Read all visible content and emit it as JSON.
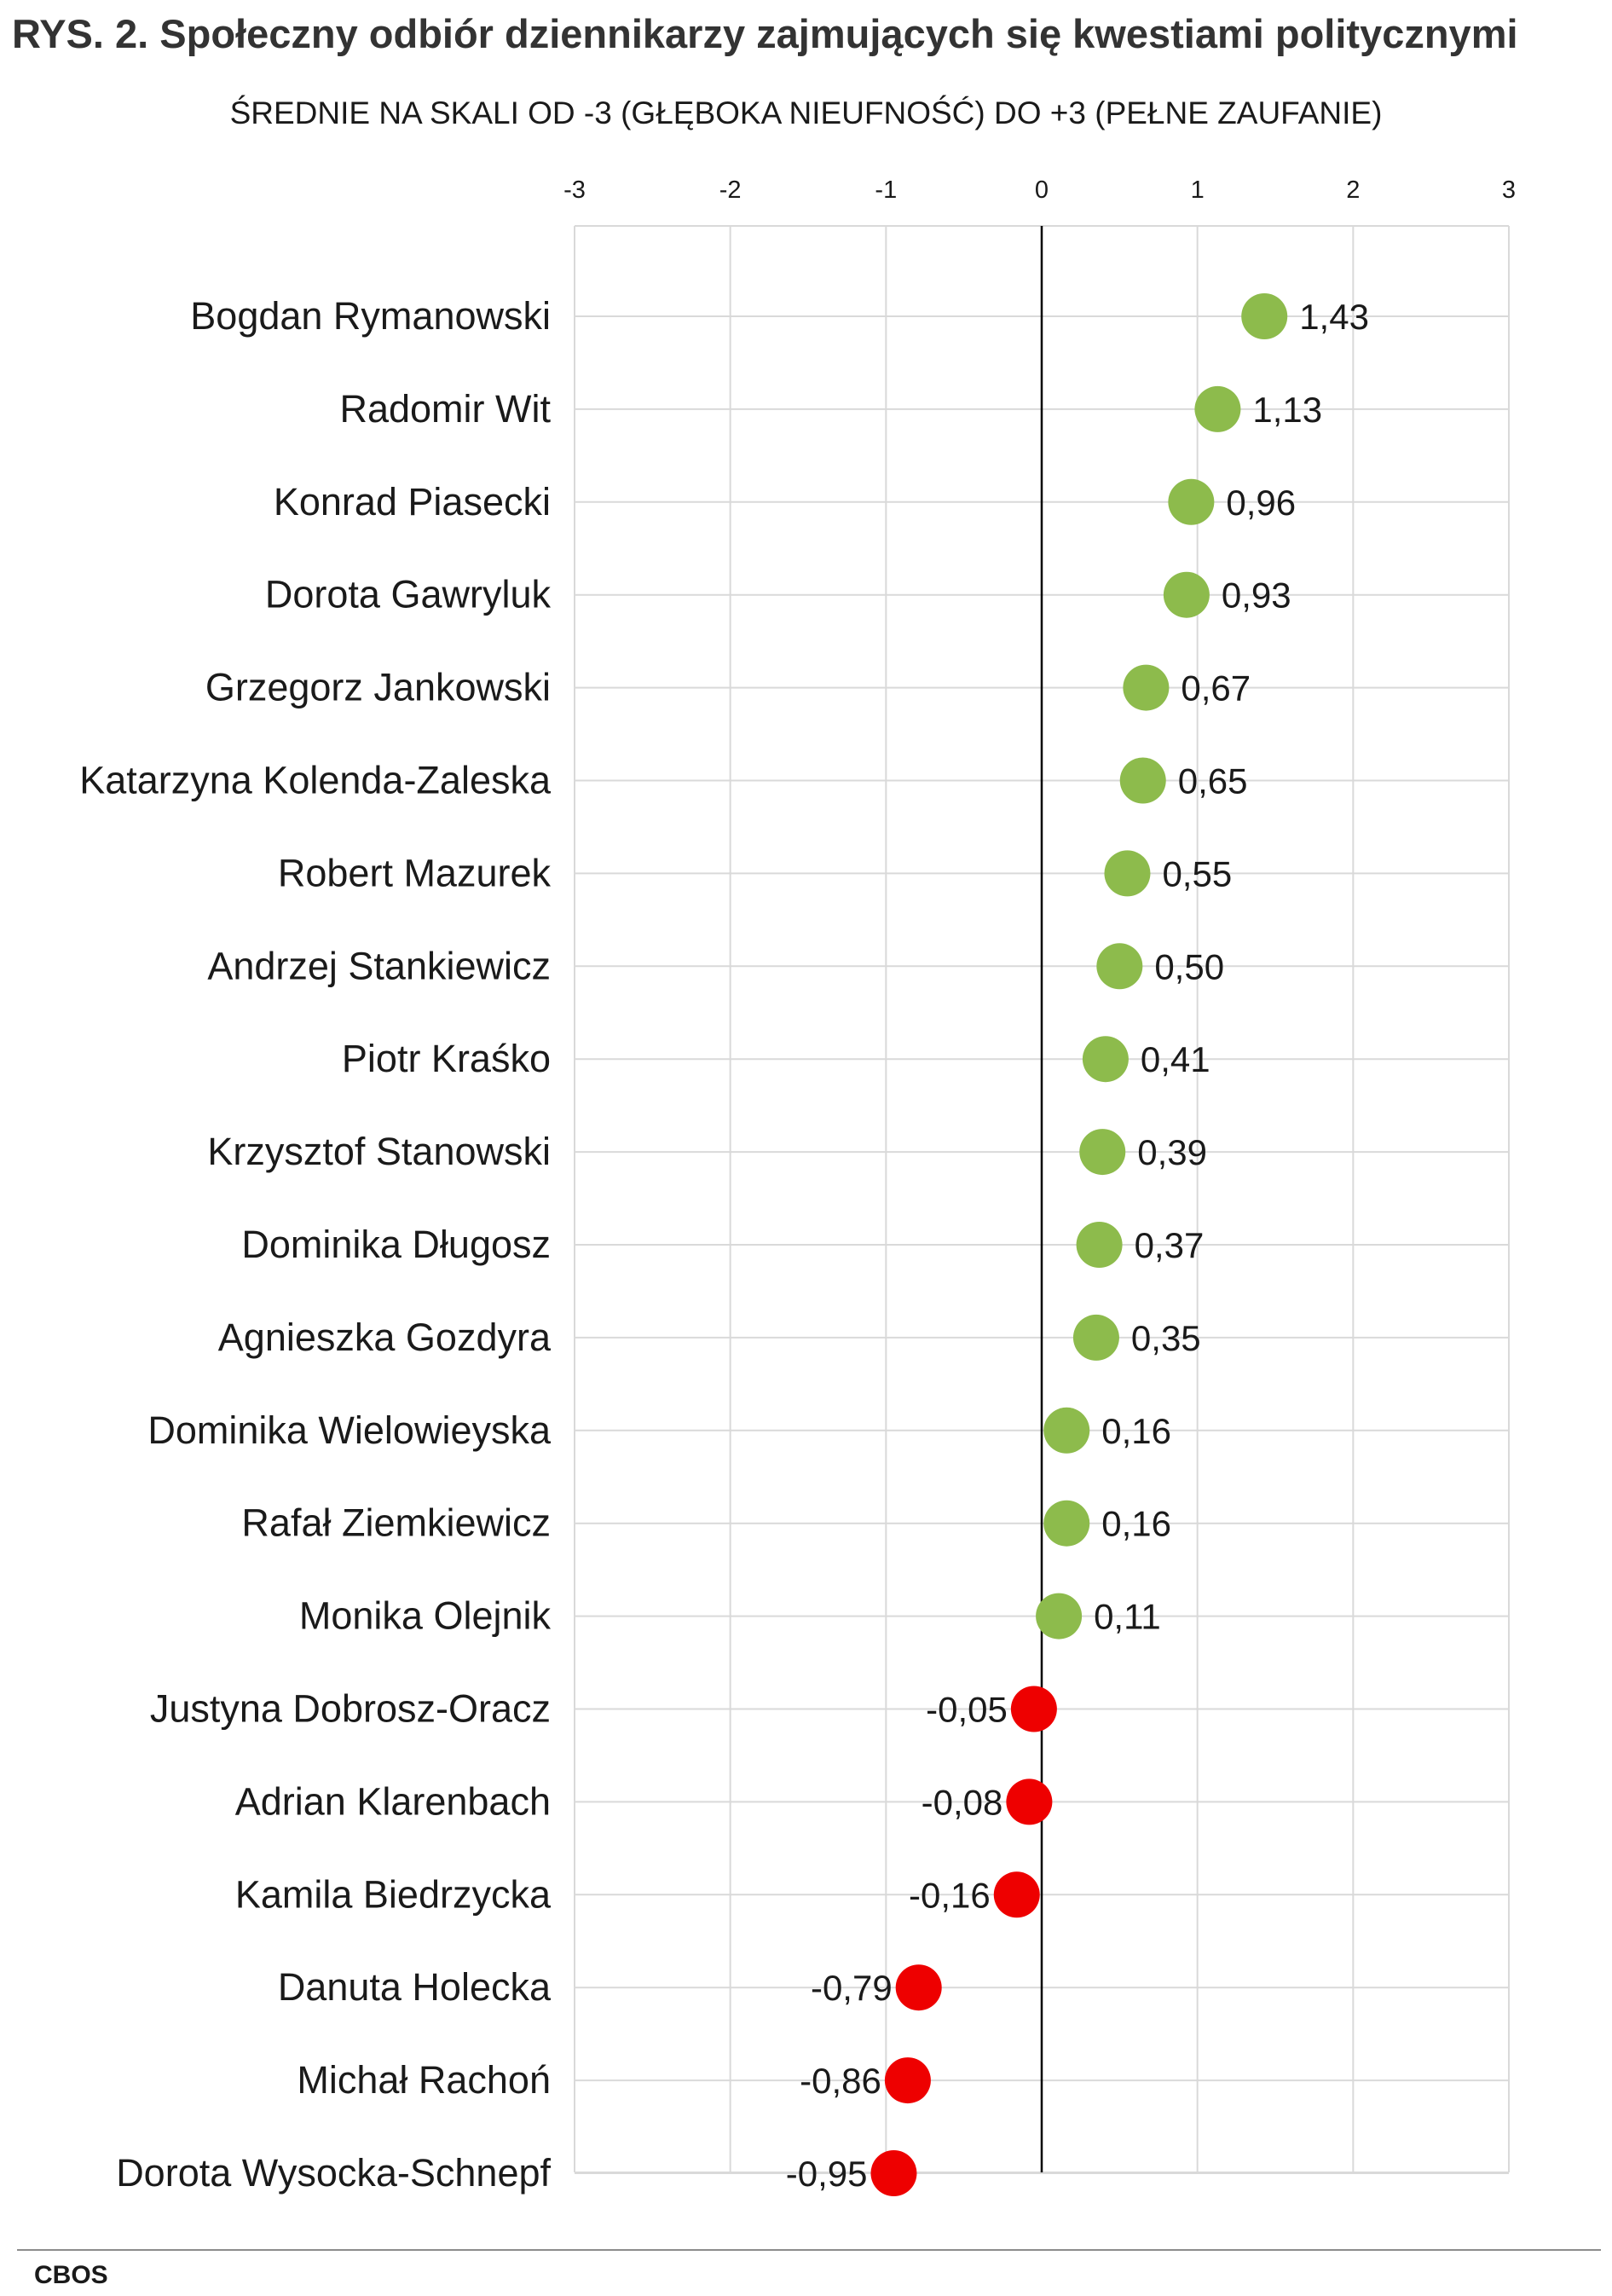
{
  "figure": {
    "title": "RYS. 2. Społeczny odbiór dziennikarzy zajmujących się kwestiami politycznymi",
    "subtitle": "ŚREDNIE NA SKALI OD -3 (GŁĘBOKA NIEUFNOŚĆ) DO +3 (PEŁNE ZAUFANIE)",
    "source": "CBOS"
  },
  "chart_data": {
    "type": "scatter",
    "title": "RYS. 2. Społeczny odbiór dziennikarzy zajmujących się kwestiami politycznymi",
    "subtitle": "ŚREDNIE NA SKALI OD -3 (GŁĘBOKA NIEUFNOŚĆ) DO +3 (PEŁNE ZAUFANIE)",
    "xlabel": "",
    "ylabel": "",
    "xlim": [
      -3,
      3
    ],
    "x_ticks": [
      "-3",
      "-2",
      "-1",
      "0",
      "1",
      "2",
      "3"
    ],
    "x_axis_position": "top",
    "grid": true,
    "legend": "none",
    "colors": {
      "positive": "#8dbb4c",
      "negative": "#ee0000",
      "zero_line": "#000000",
      "grid": "#d9d9d9"
    },
    "categories": [
      "Bogdan Rymanowski",
      "Radomir Wit",
      "Konrad Piasecki",
      "Dorota Gawryluk",
      "Grzegorz Jankowski",
      "Katarzyna Kolenda-Zaleska",
      "Robert Mazurek",
      "Andrzej Stankiewicz",
      "Piotr Kraśko",
      "Krzysztof Stanowski",
      "Dominika Długosz",
      "Agnieszka Gozdyra",
      "Dominika Wielowieyska",
      "Rafał Ziemkiewicz",
      "Monika Olejnik",
      "Justyna Dobrosz-Oracz",
      "Adrian Klarenbach",
      "Kamila Biedrzycka",
      "Danuta Holecka",
      "Michał Rachoń",
      "Dorota Wysocka-Schnepf"
    ],
    "values": [
      1.43,
      1.13,
      0.96,
      0.93,
      0.67,
      0.65,
      0.55,
      0.5,
      0.41,
      0.39,
      0.37,
      0.35,
      0.16,
      0.16,
      0.11,
      -0.05,
      -0.08,
      -0.16,
      -0.79,
      -0.86,
      -0.95
    ],
    "value_labels": [
      "1,43",
      "1,13",
      "0,96",
      "0,93",
      "0,67",
      "0,65",
      "0,55",
      "0,50",
      "0,41",
      "0,39",
      "0,37",
      "0,35",
      "0,16",
      "0,16",
      "0,11",
      "-0,05",
      "-0,08",
      "-0,16",
      "-0,79",
      "-0,86",
      "-0,95"
    ]
  }
}
